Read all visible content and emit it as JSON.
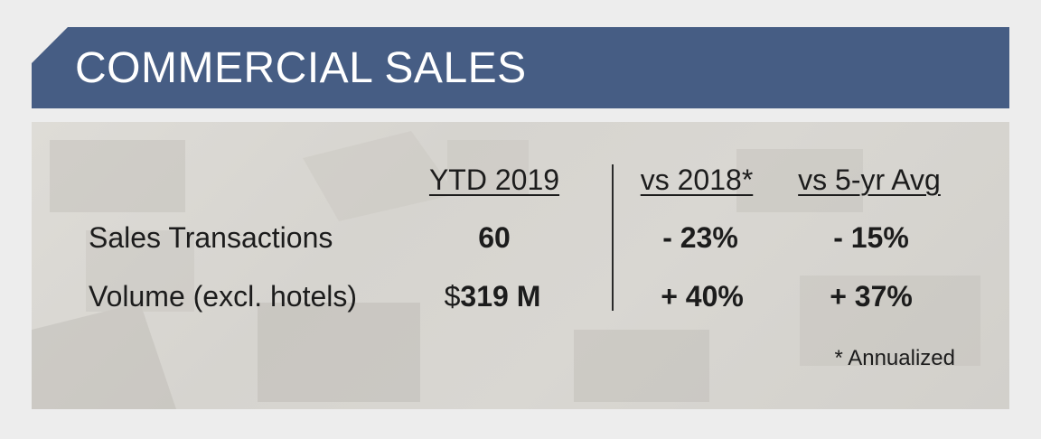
{
  "title": "COMMERCIAL SALES",
  "table": {
    "headers": [
      "YTD 2019",
      "vs 2018*",
      "vs 5-yr Avg"
    ],
    "rows": [
      {
        "label": "Sales Transactions",
        "ytd": "60",
        "vs_2018": "- 23%",
        "vs_5yr": "- 15%"
      },
      {
        "label": "Volume (excl. hotels)",
        "ytd_currency": "$",
        "ytd": "319 M",
        "vs_2018": "+ 40%",
        "vs_5yr": "+ 37%"
      }
    ]
  },
  "footnote": "* Annualized",
  "colors": {
    "banner": "#465d84",
    "panel": "#d8d6d1",
    "background": "#ededed"
  }
}
